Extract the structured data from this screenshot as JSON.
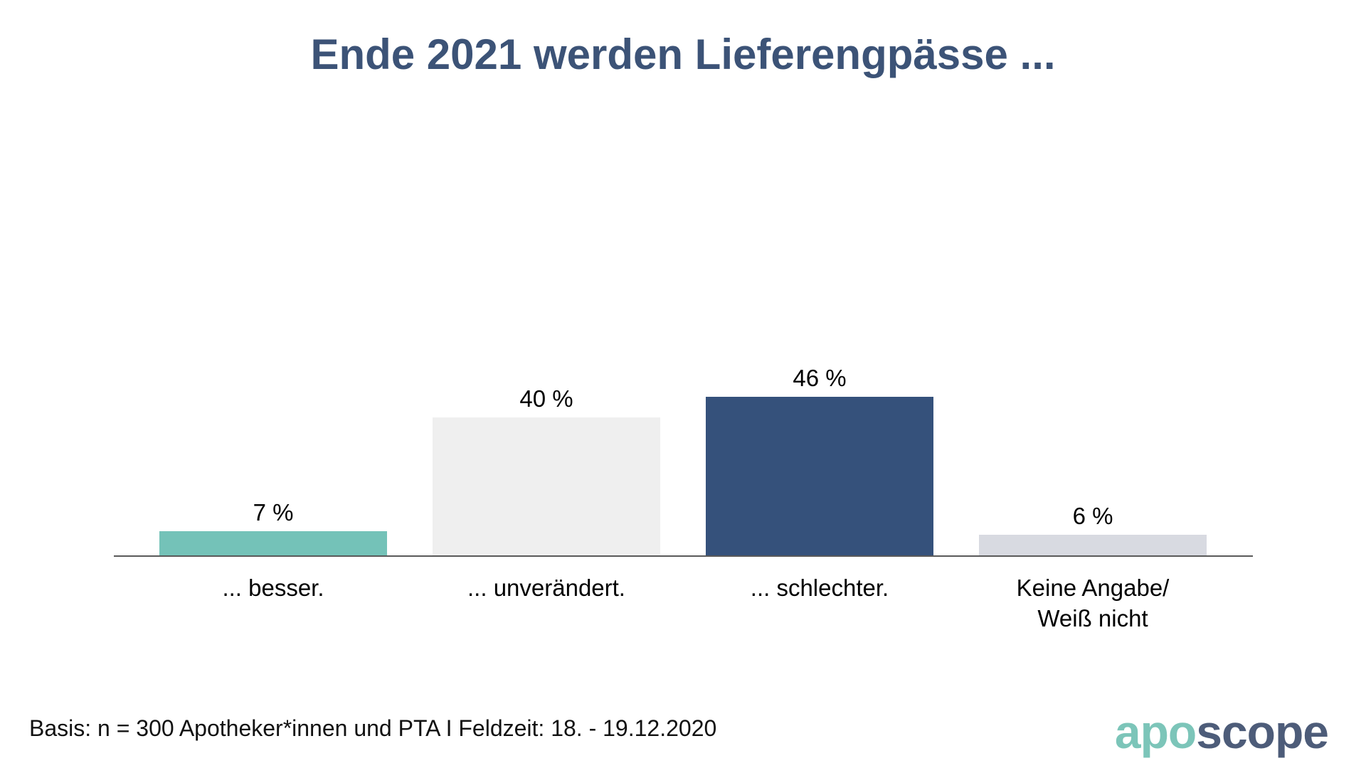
{
  "title": "Ende 2021 werden Lieferengpässe ...",
  "chart_data": {
    "type": "bar",
    "title": "Ende 2021 werden Lieferengpässe ...",
    "categories": [
      "... besser.",
      "... unverändert.",
      "... schlechter.",
      "Keine Angabe/\nWeiß nicht"
    ],
    "values": [
      7,
      40,
      46,
      6
    ],
    "value_labels": [
      "7 %",
      "40 %",
      "46 %",
      "6 %"
    ],
    "bar_colors": [
      "#74C2B8",
      "#EFEFEF",
      "#35517B",
      "#D8DAE1"
    ],
    "bar_names": [
      "besser",
      "unveraendert",
      "schlechter",
      "keine-angabe"
    ],
    "unit": "%",
    "xlabel": "",
    "ylabel": "",
    "ylim": [
      0,
      50
    ],
    "grid": false,
    "legend": false,
    "axis_color": "#595959",
    "title_color": "#3C5377",
    "label_color": "#000000"
  },
  "footer": {
    "basis": "Basis: n = 300 Apotheker*innen und PTA I Feldzeit: 18. - 19.12.2020",
    "logo": {
      "part1": "apo",
      "part2": "scope",
      "part1_color": "#7CC5B9",
      "part2_color": "#4D5C79"
    }
  }
}
